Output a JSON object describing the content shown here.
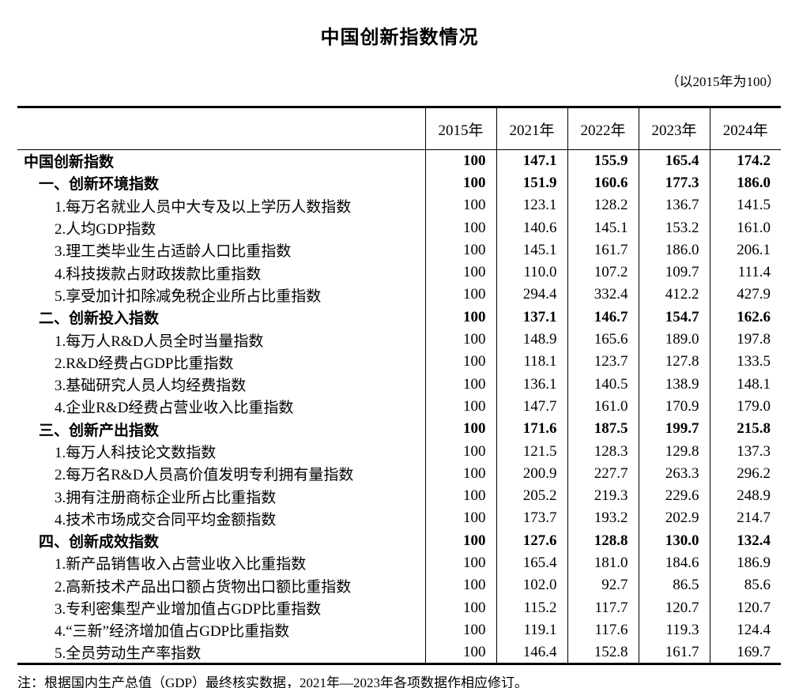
{
  "page": {
    "title": "中国创新指数情况",
    "subtitle": "（以2015年为100）",
    "note": "注：根据国内生产总值（GDP）最终核实数据，2021年—2023年各项数据作相应修订。"
  },
  "colors": {
    "background": "#ffffff",
    "text": "#000000",
    "border": "#000000"
  },
  "chart_data": {
    "type": "table",
    "title": "中国创新指数情况",
    "base_note": "以2015年为100",
    "columns": [
      "",
      "2015年",
      "2021年",
      "2022年",
      "2023年",
      "2024年"
    ],
    "rows": [
      {
        "label": "中国创新指数",
        "indent": 0,
        "bold": true,
        "values": [
          "100",
          "147.1",
          "155.9",
          "165.4",
          "174.2"
        ]
      },
      {
        "label": "一、创新环境指数",
        "indent": 1,
        "bold": true,
        "values": [
          "100",
          "151.9",
          "160.6",
          "177.3",
          "186.0"
        ]
      },
      {
        "label": "1.每万名就业人员中大专及以上学历人数指数",
        "indent": 2,
        "bold": false,
        "values": [
          "100",
          "123.1",
          "128.2",
          "136.7",
          "141.5"
        ]
      },
      {
        "label": "2.人均GDP指数",
        "indent": 2,
        "bold": false,
        "values": [
          "100",
          "140.6",
          "145.1",
          "153.2",
          "161.0"
        ]
      },
      {
        "label": "3.理工类毕业生占适龄人口比重指数",
        "indent": 2,
        "bold": false,
        "values": [
          "100",
          "145.1",
          "161.7",
          "186.0",
          "206.1"
        ]
      },
      {
        "label": "4.科技拨款占财政拨款比重指数",
        "indent": 2,
        "bold": false,
        "values": [
          "100",
          "110.0",
          "107.2",
          "109.7",
          "111.4"
        ]
      },
      {
        "label": "5.享受加计扣除减免税企业所占比重指数",
        "indent": 2,
        "bold": false,
        "values": [
          "100",
          "294.4",
          "332.4",
          "412.2",
          "427.9"
        ]
      },
      {
        "label": "二、创新投入指数",
        "indent": 1,
        "bold": true,
        "values": [
          "100",
          "137.1",
          "146.7",
          "154.7",
          "162.6"
        ]
      },
      {
        "label": "1.每万人R&D人员全时当量指数",
        "indent": 2,
        "bold": false,
        "values": [
          "100",
          "148.9",
          "165.6",
          "189.0",
          "197.8"
        ]
      },
      {
        "label": "2.R&D经费占GDP比重指数",
        "indent": 2,
        "bold": false,
        "values": [
          "100",
          "118.1",
          "123.7",
          "127.8",
          "133.5"
        ]
      },
      {
        "label": "3.基础研究人员人均经费指数",
        "indent": 2,
        "bold": false,
        "values": [
          "100",
          "136.1",
          "140.5",
          "138.9",
          "148.1"
        ]
      },
      {
        "label": "4.企业R&D经费占营业收入比重指数",
        "indent": 2,
        "bold": false,
        "values": [
          "100",
          "147.7",
          "161.0",
          "170.9",
          "179.0"
        ]
      },
      {
        "label": "三、创新产出指数",
        "indent": 1,
        "bold": true,
        "values": [
          "100",
          "171.6",
          "187.5",
          "199.7",
          "215.8"
        ]
      },
      {
        "label": "1.每万人科技论文数指数",
        "indent": 2,
        "bold": false,
        "values": [
          "100",
          "121.5",
          "128.3",
          "129.8",
          "137.3"
        ]
      },
      {
        "label": "2.每万名R&D人员高价值发明专利拥有量指数",
        "indent": 2,
        "bold": false,
        "values": [
          "100",
          "200.9",
          "227.7",
          "263.3",
          "296.2"
        ]
      },
      {
        "label": "3.拥有注册商标企业所占比重指数",
        "indent": 2,
        "bold": false,
        "values": [
          "100",
          "205.2",
          "219.3",
          "229.6",
          "248.9"
        ]
      },
      {
        "label": "4.技术市场成交合同平均金额指数",
        "indent": 2,
        "bold": false,
        "values": [
          "100",
          "173.7",
          "193.2",
          "202.9",
          "214.7"
        ]
      },
      {
        "label": "四、创新成效指数",
        "indent": 1,
        "bold": true,
        "values": [
          "100",
          "127.6",
          "128.8",
          "130.0",
          "132.4"
        ]
      },
      {
        "label": "1.新产品销售收入占营业收入比重指数",
        "indent": 2,
        "bold": false,
        "values": [
          "100",
          "165.4",
          "181.0",
          "184.6",
          "186.9"
        ]
      },
      {
        "label": "2.高新技术产品出口额占货物出口额比重指数",
        "indent": 2,
        "bold": false,
        "values": [
          "100",
          "102.0",
          "92.7",
          "86.5",
          "85.6"
        ]
      },
      {
        "label": "3.专利密集型产业增加值占GDP比重指数",
        "indent": 2,
        "bold": false,
        "values": [
          "100",
          "115.2",
          "117.7",
          "120.7",
          "120.7"
        ]
      },
      {
        "label": "4.“三新”经济增加值占GDP比重指数",
        "indent": 2,
        "bold": false,
        "values": [
          "100",
          "119.1",
          "117.6",
          "119.3",
          "124.4"
        ]
      },
      {
        "label": "5.全员劳动生产率指数",
        "indent": 2,
        "bold": false,
        "values": [
          "100",
          "146.4",
          "152.8",
          "161.7",
          "169.7"
        ]
      }
    ]
  }
}
